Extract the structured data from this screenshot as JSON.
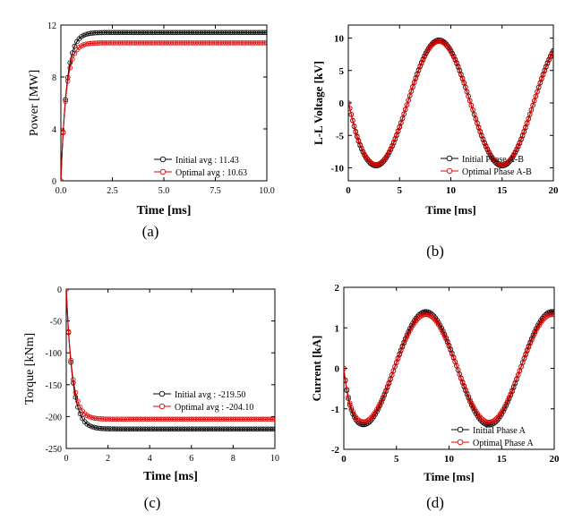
{
  "colors": {
    "initial": "#000000",
    "optimal": "#e00000"
  },
  "chart_data": [
    {
      "type": "line",
      "panel_label": "(a)",
      "xlabel": "Time [ms]",
      "ylabel": "Power [MW]",
      "xlim": [
        0,
        10
      ],
      "ylim": [
        0,
        12
      ],
      "xticks": [
        "0.0",
        "2.5",
        "5.0",
        "7.5",
        "10.0"
      ],
      "yticks": [
        "0",
        "4",
        "8",
        "12"
      ],
      "legend_position": "lower-right",
      "series": [
        {
          "name": "Initial avg : 11.43",
          "color": "#000000",
          "shape": "step",
          "steady": 11.43,
          "tau": 0.28
        },
        {
          "name": "Optimal avg : 10.63",
          "color": "#e00000",
          "shape": "step",
          "steady": 10.63,
          "tau": 0.26
        }
      ]
    },
    {
      "type": "line",
      "panel_label": "(b)",
      "xlabel": "Time [ms]",
      "ylabel": "L-L Voltage [kV]",
      "xlim": [
        0,
        20
      ],
      "ylim": [
        -12,
        12
      ],
      "xticks": [
        "0",
        "5",
        "10",
        "15",
        "20"
      ],
      "yticks": [
        "10",
        "5",
        "0",
        "-5",
        "-10"
      ],
      "legend_position": "lower-right",
      "series": [
        {
          "name": "Initial Phase A-B",
          "color": "#000000",
          "shape": "wave",
          "amplitude": 9.7,
          "period_ms": 12.3,
          "start": 0,
          "trough_ms": 2.7
        },
        {
          "name": "Optimal Phase A-B",
          "color": "#e00000",
          "shape": "wave",
          "amplitude": 9.5,
          "period_ms": 12.3,
          "start": 0,
          "trough_ms": 2.7
        }
      ]
    },
    {
      "type": "line",
      "panel_label": "(c)",
      "xlabel": "Time [ms]",
      "ylabel": "Torque [kNm]",
      "xlim": [
        0,
        10
      ],
      "ylim": [
        -250,
        0
      ],
      "xticks": [
        "0",
        "2",
        "4",
        "6",
        "8",
        "10"
      ],
      "yticks": [
        "0",
        "-50",
        "-100",
        "-150",
        "-200",
        "-250"
      ],
      "legend_position": "lower-right",
      "series": [
        {
          "name": "Initial avg : -219.50",
          "color": "#000000",
          "shape": "step",
          "steady": -219.5,
          "tau": 0.3
        },
        {
          "name": "Optimal avg : -204.10",
          "color": "#e00000",
          "shape": "step",
          "steady": -204.1,
          "tau": 0.28
        }
      ]
    },
    {
      "type": "line",
      "panel_label": "(d)",
      "xlabel": "Time [ms]",
      "ylabel": "Current [kA]",
      "xlim": [
        0,
        20
      ],
      "ylim": [
        -2,
        2
      ],
      "xticks": [
        "0",
        "5",
        "10",
        "15",
        "20"
      ],
      "yticks": [
        "2",
        "1",
        "0",
        "-1",
        "-2"
      ],
      "legend_position": "lower-right",
      "series": [
        {
          "name": "Initial Phase A",
          "color": "#000000",
          "shape": "wave",
          "amplitude": 1.4,
          "period_ms": 12.0,
          "start": 0,
          "trough_ms": 1.8
        },
        {
          "name": "Optimal Phase A",
          "color": "#e00000",
          "shape": "wave",
          "amplitude": 1.33,
          "period_ms": 12.0,
          "start": 0,
          "trough_ms": 1.8
        }
      ]
    }
  ]
}
